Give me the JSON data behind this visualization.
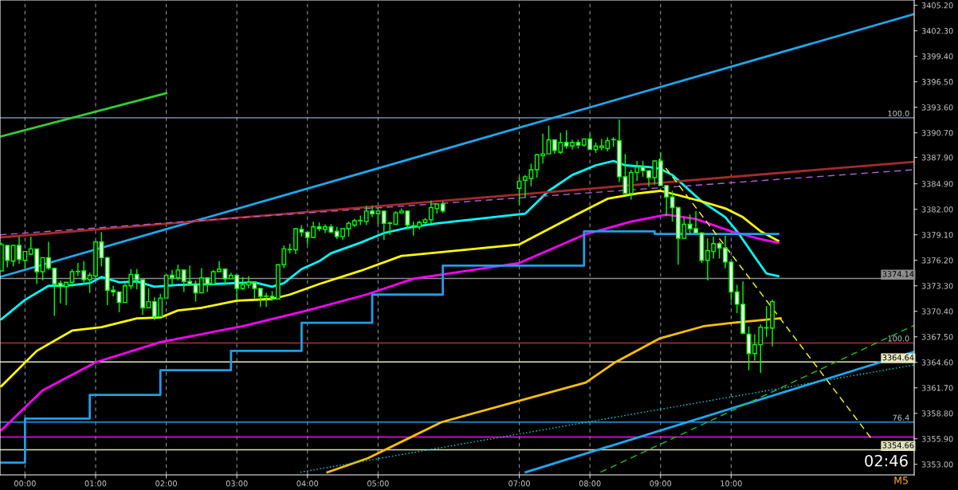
{
  "chart_data": {
    "type": "candlestick",
    "x": [
      -0.3333,
      -0.25,
      -0.1667,
      -0.0833,
      0,
      0.0833,
      0.1667,
      0.25,
      0.3333,
      0.4167,
      0.5,
      0.5833,
      0.6667,
      0.75,
      0.8333,
      0.9167,
      1,
      1.0833,
      1.1667,
      1.25,
      1.3333,
      1.4167,
      1.5,
      1.5833,
      1.6667,
      1.75,
      1.8333,
      1.9167,
      2,
      2.0833,
      2.1667,
      2.25,
      2.3333,
      2.4167,
      2.5,
      2.5833,
      2.6667,
      2.75,
      2.8333,
      2.9167,
      3,
      3.0833,
      3.1667,
      3.25,
      3.3333,
      3.4167,
      3.5,
      3.5833,
      3.6667,
      3.75,
      3.8333,
      3.9167,
      4,
      4.0833,
      4.1667,
      4.25,
      4.3333,
      4.4167,
      4.5,
      4.5833,
      4.6667,
      4.75,
      4.8333,
      4.9167,
      5,
      5.0833,
      5.1667,
      5.25,
      5.3333,
      5.4167,
      5.5,
      5.5833,
      5.6667,
      5.75,
      5.8333,
      5.9167,
      7,
      7.0833,
      7.1667,
      7.25,
      7.3333,
      7.4167,
      7.5,
      7.5833,
      7.6667,
      7.75,
      7.8333,
      7.9167,
      8,
      8.0833,
      8.1667,
      8.25,
      8.3333,
      8.4167,
      8.5,
      8.5833,
      8.6667,
      8.75,
      8.8333,
      8.9167,
      9,
      9.0833,
      9.1667,
      9.25,
      9.3333,
      9.4167,
      9.5,
      9.5833,
      9.6667,
      9.75,
      9.8333,
      9.9167,
      10,
      10.0833,
      10.1667,
      10.25,
      10.3333,
      10.4167,
      10.5,
      10.5833
    ],
    "color": "#00ff00",
    "ohlc": [
      [
        3375.0,
        3378.2,
        3375.0,
        3378.0
      ],
      [
        3377.9,
        3377.9,
        3375.4,
        3376.2
      ],
      [
        3376.1,
        3377.9,
        3375.5,
        3377.9
      ],
      [
        3377.9,
        3378.9,
        3375.8,
        3376.3
      ],
      [
        3376.2,
        3377.2,
        3375.3,
        3377.2
      ],
      [
        3376.9,
        3378.9,
        3376.8,
        3377.5
      ],
      [
        3377.5,
        3377.5,
        3373.5,
        3374.9
      ],
      [
        3374.9,
        3376.5,
        3373.9,
        3376.5
      ],
      [
        3376.5,
        3378.3,
        3375.1,
        3375.3
      ],
      [
        3375.3,
        3375.3,
        3369.9,
        3373.5
      ],
      [
        3373.6,
        3373.9,
        3371.3,
        3373.2
      ],
      [
        3373.2,
        3373.7,
        3371.1,
        3373.7
      ],
      [
        3373.7,
        3375.2,
        3373.2,
        3374.9
      ],
      [
        3374.9,
        3375.9,
        3374.4,
        3374.9
      ],
      [
        3375.0,
        3376.1,
        3373.5,
        3374.0
      ],
      [
        3374.0,
        3374.8,
        3372.5,
        3374.5
      ],
      [
        3374.4,
        3378.3,
        3374.2,
        3378.3
      ],
      [
        3378.3,
        3379.4,
        3375.5,
        3376.5
      ],
      [
        3376.5,
        3376.6,
        3371.1,
        3372.8
      ],
      [
        3372.8,
        3373.3,
        3372.1,
        3372.6
      ],
      [
        3372.6,
        3372.6,
        3370.3,
        3371.4
      ],
      [
        3371.4,
        3373.6,
        3371.4,
        3373.3
      ],
      [
        3373.3,
        3375.2,
        3372.9,
        3374.6
      ],
      [
        3374.6,
        3375.2,
        3372.9,
        3374.0
      ],
      [
        3374.0,
        3374.0,
        3370.0,
        3370.8
      ],
      [
        3370.8,
        3373.0,
        3370.8,
        3371.5
      ],
      [
        3371.5,
        3372.0,
        3369.4,
        3369.8
      ],
      [
        3369.8,
        3372.4,
        3369.8,
        3371.9
      ],
      [
        3371.9,
        3374.5,
        3371.9,
        3374.5
      ],
      [
        3374.5,
        3375.1,
        3373.4,
        3374.2
      ],
      [
        3374.2,
        3375.7,
        3373.9,
        3375.1
      ],
      [
        3375.1,
        3375.1,
        3372.6,
        3373.8
      ],
      [
        3373.8,
        3375.6,
        3373.5,
        3373.5
      ],
      [
        3373.5,
        3373.9,
        3371.5,
        3372.5
      ],
      [
        3372.5,
        3375.3,
        3372.5,
        3374.2
      ],
      [
        3374.2,
        3374.2,
        3372.6,
        3373.5
      ],
      [
        3373.5,
        3375.1,
        3373.5,
        3374.9
      ],
      [
        3374.9,
        3376.1,
        3374.9,
        3375.2
      ],
      [
        3375.2,
        3375.2,
        3373.4,
        3374.1
      ],
      [
        3374.1,
        3374.8,
        3374.1,
        3374.5
      ],
      [
        3374.5,
        3374.5,
        3371.7,
        3373.0
      ],
      [
        3373.0,
        3374.3,
        3372.8,
        3373.4
      ],
      [
        3373.4,
        3374.4,
        3373.0,
        3373.7
      ],
      [
        3373.7,
        3373.7,
        3371.8,
        3373.0
      ],
      [
        3373.0,
        3373.0,
        3370.9,
        3372.1
      ],
      [
        3372.1,
        3372.5,
        3370.9,
        3372.1
      ],
      [
        3372.1,
        3372.7,
        3371.6,
        3371.8
      ],
      [
        3371.8,
        3375.7,
        3371.8,
        3375.7
      ],
      [
        3375.7,
        3377.9,
        3375.3,
        3377.5
      ],
      [
        3377.4,
        3378.1,
        3377.0,
        3377.4
      ],
      [
        3377.4,
        3379.8,
        3376.9,
        3379.8
      ],
      [
        3379.7,
        3380.2,
        3378.9,
        3379.4
      ],
      [
        3379.4,
        3379.4,
        3378.0,
        3378.8
      ],
      [
        3378.8,
        3380.6,
        3378.8,
        3380.0
      ],
      [
        3380.0,
        3380.5,
        3379.5,
        3379.8
      ],
      [
        3379.7,
        3380.3,
        3379.3,
        3380.0
      ],
      [
        3380.0,
        3380.3,
        3379.4,
        3379.4
      ],
      [
        3379.5,
        3380.0,
        3378.6,
        3378.9
      ],
      [
        3378.9,
        3379.8,
        3378.5,
        3379.8
      ],
      [
        3379.8,
        3380.6,
        3378.9,
        3380.4
      ],
      [
        3380.2,
        3380.9,
        3380.0,
        3380.7
      ],
      [
        3380.7,
        3381.3,
        3380.2,
        3380.7
      ],
      [
        3380.6,
        3382.4,
        3380.2,
        3381.8
      ],
      [
        3381.8,
        3382.4,
        3381.1,
        3381.5
      ],
      [
        3381.5,
        3382.2,
        3380.3,
        3381.8
      ],
      [
        3381.8,
        3381.8,
        3378.5,
        3380.4
      ],
      [
        3380.4,
        3380.6,
        3379.1,
        3380.4
      ],
      [
        3380.3,
        3381.8,
        3380.3,
        3381.6
      ],
      [
        3381.6,
        3382.1,
        3381.5,
        3381.8
      ],
      [
        3381.8,
        3381.9,
        3379.8,
        3380.2
      ],
      [
        3380.1,
        3380.6,
        3379.0,
        3380.1
      ],
      [
        3380.0,
        3380.7,
        3379.7,
        3380.5
      ],
      [
        3380.5,
        3381.0,
        3380.2,
        3380.8
      ],
      [
        3380.8,
        3383.0,
        3380.4,
        3382.2
      ],
      [
        3382.1,
        3382.6,
        3381.5,
        3382.6
      ],
      [
        3382.6,
        3382.9,
        3381.6,
        3381.8
      ],
      [
        3384.4,
        3385.7,
        3382.5,
        3385.2
      ],
      [
        3385.3,
        3385.9,
        3383.3,
        3385.7
      ],
      [
        3385.5,
        3387.2,
        3384.6,
        3386.5
      ],
      [
        3386.5,
        3388.3,
        3385.6,
        3388.2
      ],
      [
        3388.1,
        3390.6,
        3387.2,
        3388.3
      ],
      [
        3388.3,
        3391.5,
        3388.3,
        3389.9
      ],
      [
        3389.9,
        3389.9,
        3388.3,
        3388.7
      ],
      [
        3388.5,
        3390.7,
        3388.3,
        3389.6
      ],
      [
        3389.6,
        3391.0,
        3388.9,
        3389.2
      ],
      [
        3389.2,
        3389.9,
        3388.8,
        3389.6
      ],
      [
        3389.6,
        3389.9,
        3388.9,
        3389.3
      ],
      [
        3389.3,
        3390.0,
        3389.1,
        3390.0
      ],
      [
        3390.0,
        3390.6,
        3388.8,
        3388.8
      ],
      [
        3388.8,
        3389.6,
        3388.4,
        3389.2
      ],
      [
        3389.0,
        3390.0,
        3388.7,
        3389.2
      ],
      [
        3388.9,
        3390.2,
        3388.6,
        3389.8
      ],
      [
        3389.9,
        3390.2,
        3389.1,
        3389.9
      ],
      [
        3389.8,
        3392.2,
        3385.1,
        3385.7
      ],
      [
        3385.7,
        3388.3,
        3383.8,
        3383.8
      ],
      [
        3383.8,
        3386.5,
        3383.1,
        3386.2
      ],
      [
        3386.2,
        3387.5,
        3385.2,
        3386.8
      ],
      [
        3386.8,
        3387.5,
        3385.7,
        3386.4
      ],
      [
        3386.4,
        3386.4,
        3384.6,
        3385.6
      ],
      [
        3385.6,
        3387.5,
        3384.8,
        3387.5
      ],
      [
        3387.5,
        3388.5,
        3384.7,
        3384.7
      ],
      [
        3384.7,
        3384.7,
        3381.2,
        3383.4
      ],
      [
        3383.4,
        3384.1,
        3380.6,
        3382.2
      ],
      [
        3382.2,
        3382.2,
        3375.7,
        3378.7
      ],
      [
        3378.7,
        3381.1,
        3378.7,
        3380.3
      ],
      [
        3380.3,
        3381.4,
        3379.1,
        3379.8
      ],
      [
        3379.8,
        3381.8,
        3379.3,
        3379.3
      ],
      [
        3379.3,
        3379.4,
        3375.9,
        3376.2
      ],
      [
        3376.2,
        3378.7,
        3373.9,
        3377.3
      ],
      [
        3377.2,
        3378.9,
        3376.4,
        3378.1
      ],
      [
        3378.1,
        3378.3,
        3376.4,
        3377.6
      ],
      [
        3377.6,
        3379.0,
        3375.3,
        3376.0
      ],
      [
        3376.0,
        3376.0,
        3371.6,
        3372.6
      ],
      [
        3372.6,
        3373.4,
        3370.2,
        3371.2
      ],
      [
        3371.2,
        3373.8,
        3367.8,
        3367.9
      ],
      [
        3367.8,
        3368.7,
        3363.7,
        3365.6
      ],
      [
        3365.6,
        3367.8,
        3364.8,
        3366.6
      ],
      [
        3366.6,
        3368.9,
        3363.4,
        3368.6
      ],
      [
        3368.5,
        3371.0,
        3367.5,
        3368.5
      ],
      [
        3368.5,
        3371.7,
        3366.4,
        3371.5
      ]
    ],
    "series": [
      {
        "type": "line",
        "color": "#00ffff",
        "x": [
          -0.3333,
          0,
          0.3333,
          0.5833,
          0.9167,
          1.0833,
          1.3333,
          1.5833,
          1.8333,
          2.1667,
          2.6667,
          3.25,
          3.5,
          3.6667,
          3.9167,
          4.1667,
          4.3333,
          4.75,
          5.0833,
          5.4167,
          5.8333,
          7.0833,
          7.4167,
          7.75,
          8.0833,
          8.3333,
          8.5,
          8.8333,
          9.0,
          9.1667,
          9.5833,
          9.9167,
          10.0833,
          10.3333,
          10.5,
          10.6667
        ],
        "values": [
          3369.5,
          3371.7,
          3373.3,
          3373.3,
          3373.6,
          3374.3,
          3373.7,
          3373.8,
          3373.2,
          3373.4,
          3373.5,
          3373.7,
          3373.2,
          3373.6,
          3375.2,
          3376.1,
          3377.0,
          3378.2,
          3379.3,
          3379.9,
          3380.4,
          3381.5,
          3384.1,
          3385.9,
          3387.0,
          3387.5,
          3387.0,
          3386.8,
          3386.6,
          3385.9,
          3382.9,
          3381.1,
          3379.5,
          3376.6,
          3374.7,
          3374.4
        ]
      },
      {
        "type": "line",
        "color": "#ffff00",
        "x": [
          -0.3333,
          0.1667,
          0.6667,
          1.0833,
          1.5833,
          1.9167,
          2.1667,
          2.5,
          3.0,
          3.5,
          3.75,
          4.1667,
          4.75,
          5.3333,
          7.0,
          7.8333,
          8.25,
          8.6667,
          9.0,
          9.25,
          9.5833,
          9.9167,
          10.1667,
          10.4167,
          10.6667
        ],
        "values": [
          3361.9,
          3365.9,
          3368.2,
          3368.6,
          3369.6,
          3369.7,
          3370.5,
          3370.8,
          3371.6,
          3371.8,
          3372.3,
          3373.5,
          3375.0,
          3376.7,
          3378.0,
          3381.5,
          3383.2,
          3383.8,
          3384.1,
          3383.6,
          3382.9,
          3382.1,
          3381.1,
          3379.5,
          3378.4
        ]
      },
      {
        "type": "line",
        "color": "#ff00ff",
        "x": [
          -0.3333,
          0.25,
          1.0,
          1.9167,
          3.0833,
          4.0,
          4.8333,
          5.5,
          7.0,
          7.9167,
          8.5833,
          9.0833,
          9.5,
          10.0,
          10.4167,
          10.6667
        ],
        "values": [
          3356.9,
          3361.4,
          3364.6,
          3366.9,
          3368.7,
          3370.5,
          3372.3,
          3374.1,
          3375.9,
          3379.1,
          3380.6,
          3381.4,
          3380.9,
          3379.5,
          3378.6,
          3378.2
        ]
      },
      {
        "type": "line",
        "color": "#ffc000",
        "x": [
          4.2833,
          4.8583,
          5.9,
          7.9417,
          8.3583,
          8.9833,
          9.6083,
          10.025,
          10.7
        ],
        "values": [
          3352.1,
          3353.7,
          3357.8,
          3362.3,
          3364.6,
          3367.3,
          3368.7,
          3369.1,
          3369.6
        ]
      },
      {
        "type": "step",
        "color": "#1e9fe8",
        "x": [
          -0.3333,
          0,
          0.9167,
          1.9167,
          2.9167,
          3.9167,
          4.9167,
          5.9167,
          7.9167,
          8.9167,
          10.6667
        ],
        "values": [
          3353.2,
          3358.2,
          3360.9,
          3363.7,
          3365.9,
          3369.1,
          3372.3,
          3375.6,
          3379.5,
          3379.2,
          3379.2
        ]
      },
      {
        "type": "line",
        "color": "#1ea8ee",
        "x": [
          -0.3542,
          12.5917
        ],
        "values": [
          3374.3,
          3404.2
        ]
      },
      {
        "type": "line",
        "color": "#1ea8ee",
        "x": [
          7.0917,
          12.5917
        ],
        "values": [
          3352.1,
          3365.8
        ]
      },
      {
        "type": "line",
        "color": "#32cd32",
        "x": [
          -0.3333,
          2.0
        ],
        "values": [
          3390.3,
          3395.2
        ]
      },
      {
        "type": "line",
        "color": "#a52a2a",
        "x": [
          -0.3542,
          12.5917
        ],
        "values": [
          3378.8,
          3387.4
        ]
      },
      {
        "type": "line",
        "color": "#b060d8",
        "line_style": "dashed",
        "x": [
          -0.3542,
          12.5917
        ],
        "values": [
          3379.1,
          3386.5
        ]
      },
      {
        "type": "line",
        "color": "#ffff00",
        "line_style": "dashed",
        "x": [
          8.9792,
          11.9792
        ],
        "values": [
          3387.7,
          3356.0
        ]
      },
      {
        "type": "line",
        "color": "#20c020",
        "line_style": "dashed",
        "x": [
          8.15,
          12.5917
        ],
        "values": [
          3352.1,
          3368.8
        ]
      },
      {
        "type": "line",
        "color": "#00e5ee",
        "line_style": "dotted",
        "x": [
          3.9,
          12.5917
        ],
        "values": [
          3352.1,
          3364.3
        ]
      }
    ],
    "xlim": [
      -0.3542,
      12.5917
    ],
    "xticks": [
      {
        "value": 0,
        "label": "00:00"
      },
      {
        "value": 1,
        "label": "01:00"
      },
      {
        "value": 2,
        "label": "02:00"
      },
      {
        "value": 3,
        "label": "03:00"
      },
      {
        "value": 4,
        "label": "04:00"
      },
      {
        "value": 5,
        "label": "05:00"
      },
      {
        "value": 7,
        "label": "07:00"
      },
      {
        "value": 8,
        "label": "08:00"
      },
      {
        "value": 9,
        "label": "09:00"
      },
      {
        "value": 10,
        "label": "10:00"
      }
    ],
    "ylim": [
      3351.8,
      3405.8
    ],
    "yticks": [
      {
        "value": 3405.2,
        "label": "3405.20"
      },
      {
        "value": 3402.3,
        "label": "3402.30"
      },
      {
        "value": 3399.4,
        "label": "3399.40"
      },
      {
        "value": 3396.5,
        "label": "3396.50"
      },
      {
        "value": 3393.6,
        "label": "3393.60"
      },
      {
        "value": 3390.7,
        "label": "3390.70"
      },
      {
        "value": 3387.9,
        "label": "3387.90"
      },
      {
        "value": 3384.9,
        "label": "3384.90"
      },
      {
        "value": 3382.0,
        "label": "3382.00"
      },
      {
        "value": 3379.1,
        "label": "3379.10"
      },
      {
        "value": 3376.2,
        "label": "3376.20"
      },
      {
        "value": 3373.3,
        "label": "3373.30"
      },
      {
        "value": 3370.4,
        "label": "3370.40"
      },
      {
        "value": 3367.5,
        "label": "3367.50"
      },
      {
        "value": 3364.6,
        "label": "3364.60"
      },
      {
        "value": 3361.7,
        "label": "3361.70"
      },
      {
        "value": 3358.8,
        "label": "3358.80"
      },
      {
        "value": 3355.9,
        "label": "3355.90"
      },
      {
        "value": 3353.0,
        "label": "3353.00"
      }
    ],
    "grid": "x",
    "ref_lines": [
      {
        "axis": "y",
        "value": 3392.4,
        "color": "#8aa4c8"
      },
      {
        "axis": "y",
        "value": 3374.14,
        "label": "3374.14",
        "color": "#8c8c8c"
      },
      {
        "axis": "y",
        "value": 3366.8,
        "color": "#b03030"
      },
      {
        "axis": "y",
        "value": 3364.64,
        "label": "3364.64",
        "color": "#e8e8c0"
      },
      {
        "axis": "y",
        "value": 3357.8,
        "color": "#1e9fe8"
      },
      {
        "axis": "y",
        "value": 3356.1,
        "color": "#ff00ff"
      },
      {
        "axis": "y",
        "value": 3354.66,
        "label": "3354.66",
        "color": "#e0e0c0"
      }
    ],
    "annotations": [
      {
        "text": "100.0",
        "y": 3392.4
      },
      {
        "text": "100.0",
        "y": 3366.8
      },
      {
        "text": "76.4",
        "y": 3357.8
      },
      "02:46",
      "M5"
    ]
  }
}
